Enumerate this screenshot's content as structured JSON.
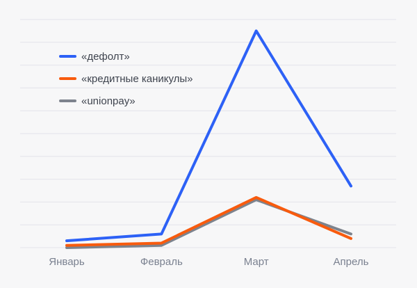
{
  "chart_data": {
    "type": "line",
    "categories": [
      "Январь",
      "Февраль",
      "Март",
      "Апрель"
    ],
    "series": [
      {
        "name": "«дефолт»",
        "color": "#2d61f6",
        "values": [
          3,
          6,
          95,
          27
        ]
      },
      {
        "name": "«кредитные каникулы»",
        "color": "#f85b0e",
        "values": [
          1,
          2,
          22,
          4
        ]
      },
      {
        "name": "«unionpay»",
        "color": "#7d838d",
        "values": [
          0,
          1,
          21,
          6
        ]
      }
    ],
    "title": "",
    "xlabel": "",
    "ylabel": "",
    "ylim": [
      0,
      100
    ],
    "grid": "horizontal-only",
    "gridline_count": 11,
    "legend_position": "top-left",
    "colors": {
      "background": "#f7f7f8",
      "gridline": "#e3e3ea",
      "axis_label_text": "#7a8190",
      "legend_text": "#3e434e"
    }
  }
}
